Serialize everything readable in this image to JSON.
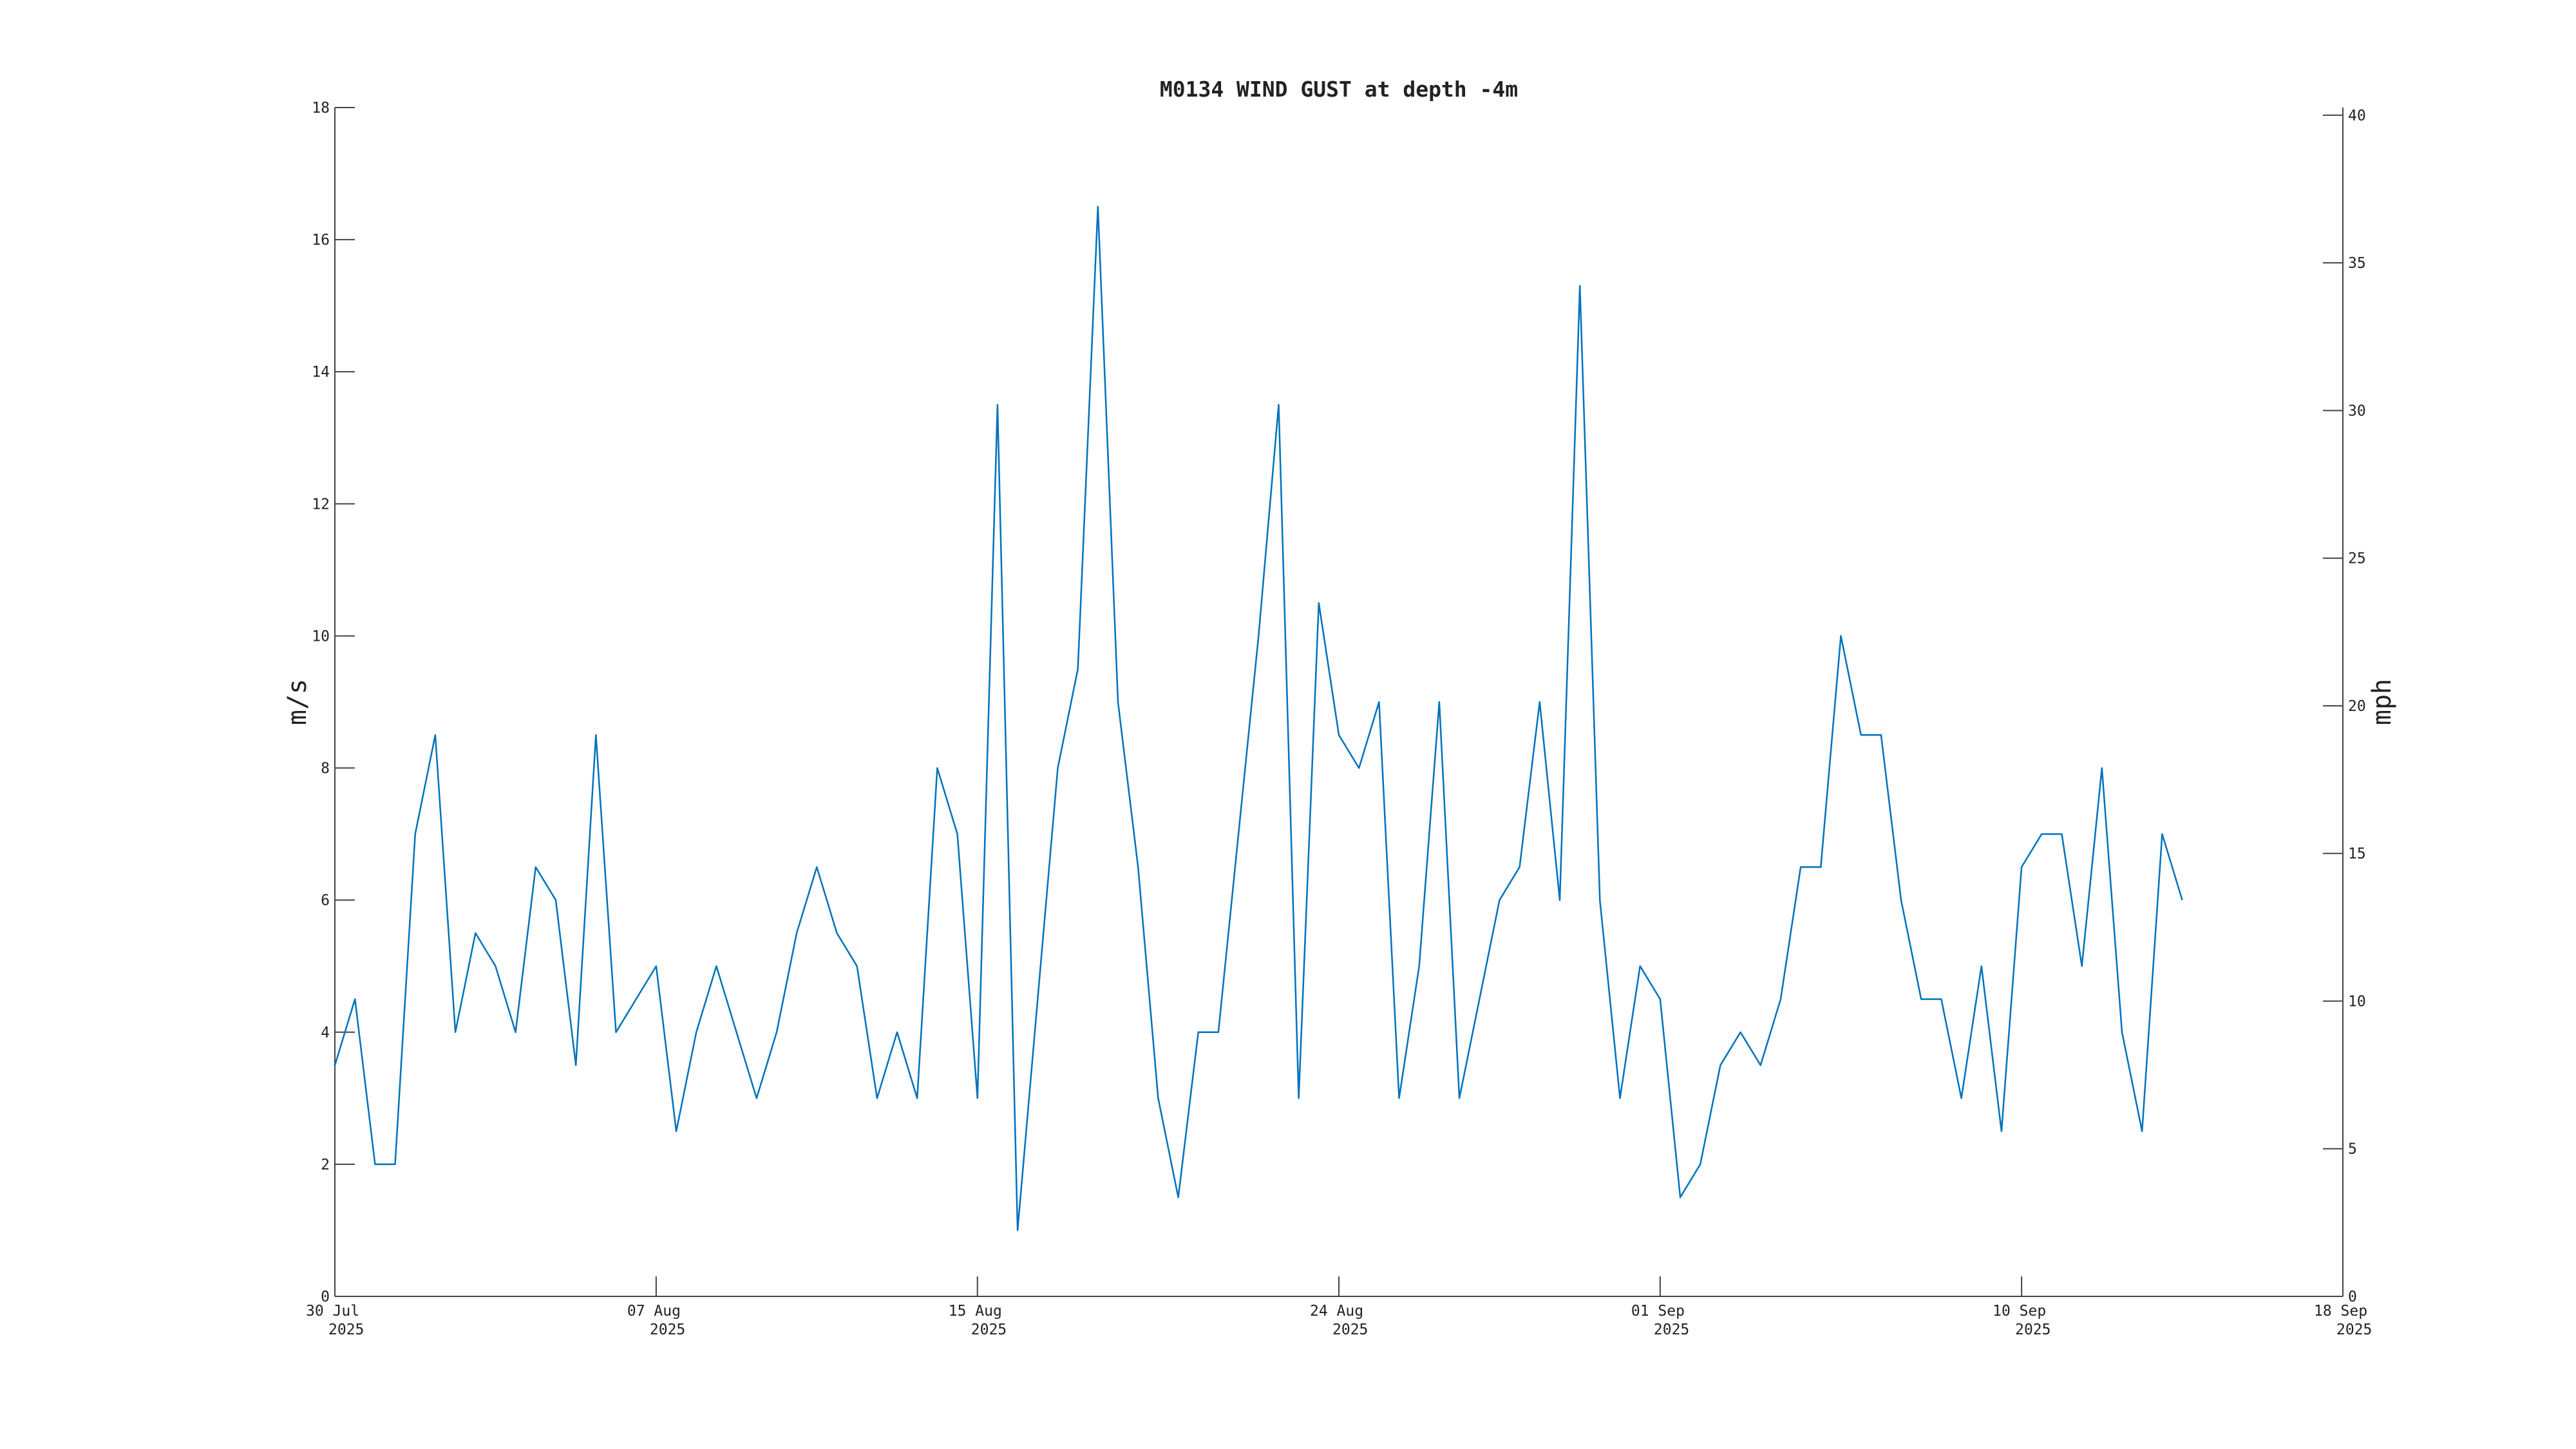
{
  "chart_data": {
    "type": "line",
    "title": "M0134 WIND GUST at depth -4m",
    "ylabel": "m/s",
    "y2label": "mph",
    "color": "#0072bd",
    "x": [
      "2025-07-30T00:00",
      "2025-07-30T12:00",
      "2025-07-31T00:00",
      "2025-07-31T12:00",
      "2025-08-01T00:00",
      "2025-08-01T12:00",
      "2025-08-02T00:00",
      "2025-08-02T12:00",
      "2025-08-03T00:00",
      "2025-08-03T12:00",
      "2025-08-04T00:00",
      "2025-08-04T12:00",
      "2025-08-05T00:00",
      "2025-08-05T12:00",
      "2025-08-06T00:00",
      "2025-08-06T12:00",
      "2025-08-07T00:00",
      "2025-08-07T12:00",
      "2025-08-08T00:00",
      "2025-08-08T12:00",
      "2025-08-09T00:00",
      "2025-08-09T12:00",
      "2025-08-10T00:00",
      "2025-08-10T12:00",
      "2025-08-11T00:00",
      "2025-08-11T12:00",
      "2025-08-12T00:00",
      "2025-08-12T12:00",
      "2025-08-13T00:00",
      "2025-08-13T12:00",
      "2025-08-14T00:00",
      "2025-08-14T12:00",
      "2025-08-15T00:00",
      "2025-08-15T12:00",
      "2025-08-16T00:00",
      "2025-08-16T12:00",
      "2025-08-17T00:00",
      "2025-08-17T12:00",
      "2025-08-18T00:00",
      "2025-08-18T12:00",
      "2025-08-19T00:00",
      "2025-08-19T12:00",
      "2025-08-20T00:00",
      "2025-08-20T12:00",
      "2025-08-21T00:00",
      "2025-08-21T12:00",
      "2025-08-22T00:00",
      "2025-08-22T12:00",
      "2025-08-23T00:00",
      "2025-08-23T12:00",
      "2025-08-24T00:00",
      "2025-08-24T12:00",
      "2025-08-25T00:00",
      "2025-08-25T12:00",
      "2025-08-26T00:00",
      "2025-08-26T12:00",
      "2025-08-27T00:00",
      "2025-08-27T12:00",
      "2025-08-28T00:00",
      "2025-08-28T12:00",
      "2025-08-29T00:00",
      "2025-08-29T12:00",
      "2025-08-30T00:00",
      "2025-08-30T12:00",
      "2025-08-31T00:00",
      "2025-08-31T12:00",
      "2025-09-01T00:00",
      "2025-09-01T12:00",
      "2025-09-02T00:00",
      "2025-09-02T12:00",
      "2025-09-03T00:00",
      "2025-09-03T12:00",
      "2025-09-04T00:00",
      "2025-09-04T12:00",
      "2025-09-05T00:00",
      "2025-09-05T12:00",
      "2025-09-06T00:00",
      "2025-09-06T12:00",
      "2025-09-07T00:00",
      "2025-09-07T12:00",
      "2025-09-08T00:00",
      "2025-09-08T12:00",
      "2025-09-09T00:00",
      "2025-09-09T12:00",
      "2025-09-10T00:00",
      "2025-09-10T12:00",
      "2025-09-11T00:00",
      "2025-09-11T12:00",
      "2025-09-12T00:00",
      "2025-09-12T12:00",
      "2025-09-13T00:00",
      "2025-09-13T12:00",
      "2025-09-14T00:00"
    ],
    "values": [
      3.5,
      4.5,
      2,
      2,
      7,
      8.5,
      4,
      5.5,
      5,
      4,
      6.5,
      6,
      3.5,
      8.5,
      4,
      4.5,
      5,
      2.5,
      4,
      5,
      4,
      3,
      4,
      5.5,
      6.5,
      5.5,
      5,
      3,
      4,
      3,
      8,
      7,
      3,
      13.5,
      1,
      4.5,
      8,
      9.5,
      16.5,
      9,
      6.5,
      3,
      1.5,
      4,
      4,
      7,
      10,
      13.5,
      3,
      10.5,
      8.5,
      8,
      9,
      3,
      5,
      9,
      3,
      4.5,
      6,
      6.5,
      9,
      6,
      15.3,
      6,
      3,
      5,
      4.5,
      1.5,
      2,
      3.5,
      4,
      3.5,
      4.5,
      6.5,
      6.5,
      10,
      8.5,
      8.5,
      6,
      4.5,
      4.5,
      3,
      5,
      2.5,
      6.5,
      7,
      7,
      5,
      8,
      4,
      2.5,
      7,
      6
    ],
    "xlim": [
      "2025-07-30T00:00",
      "2025-09-18T00:00"
    ],
    "xticks": [
      {
        "value": "2025-07-30T00:00",
        "label": "30 Jul 2025"
      },
      {
        "value": "2025-08-07T00:00",
        "label": "07 Aug 2025"
      },
      {
        "value": "2025-08-15T00:00",
        "label": "15 Aug 2025"
      },
      {
        "value": "2025-08-24T00:00",
        "label": "24 Aug 2025"
      },
      {
        "value": "2025-09-01T00:00",
        "label": "01 Sep 2025"
      },
      {
        "value": "2025-09-10T00:00",
        "label": "10 Sep 2025"
      },
      {
        "value": "2025-09-18T00:00",
        "label": "18 Sep 2025"
      }
    ],
    "ylim": [
      0,
      18
    ],
    "yticks": [
      0,
      2,
      4,
      6,
      8,
      10,
      12,
      14,
      16,
      18
    ],
    "y2lim": [
      0,
      40.26
    ],
    "y2ticks": [
      0,
      5,
      10,
      15,
      20,
      25,
      30,
      35,
      40
    ]
  }
}
